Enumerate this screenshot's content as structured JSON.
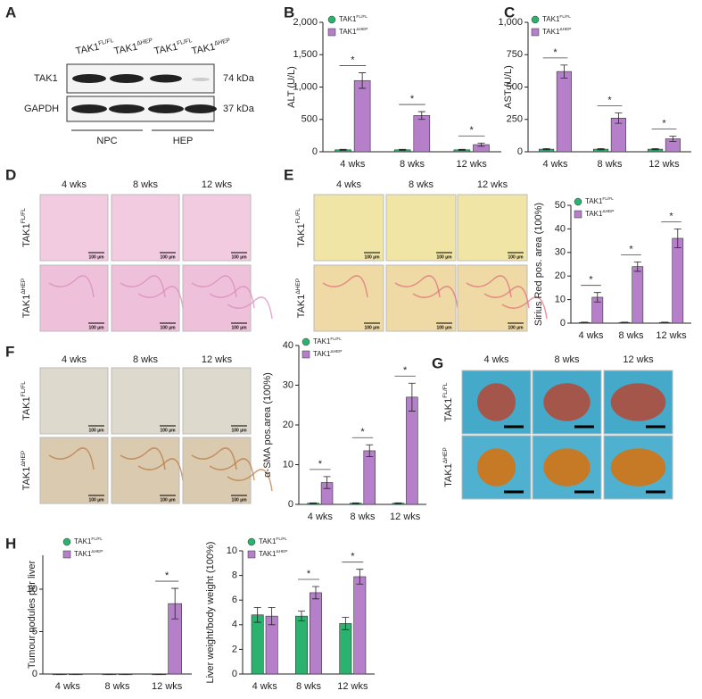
{
  "figure": {
    "panel_labels": [
      "A",
      "B",
      "C",
      "D",
      "E",
      "F",
      "G",
      "H"
    ]
  },
  "blot": {
    "lanes": [
      {
        "name": "TAK1",
        "superscript": "FL/FL"
      },
      {
        "name": "TAK1",
        "superscript": "ΔHEP"
      },
      {
        "name": "TAK1",
        "superscript": "FL/FL"
      },
      {
        "name": "TAK1",
        "superscript": "ΔHEP"
      }
    ],
    "rows": [
      "TAK1",
      "GAPDH"
    ],
    "sizes": [
      "74 kDa",
      "37 kDa"
    ],
    "groups": [
      "NPC",
      "HEP"
    ]
  },
  "histology": {
    "timepoints": [
      "4 wks",
      "8 wks",
      "12 wks"
    ],
    "genotypes": [
      {
        "name": "TAK1",
        "superscript": "FL/FL"
      },
      {
        "name": "TAK1",
        "superscript": "ΔHEP"
      }
    ],
    "scale_bar": "100 µm"
  },
  "chart_data": [
    {
      "type": "bar",
      "y_label": "ALT (U/L)",
      "categories": [
        "4 wks",
        "8 wks",
        "12 wks"
      ],
      "series": [
        {
          "name": "TAK1",
          "superscript": "FL/FL",
          "color": "#2bb26f",
          "values": [
            30,
            30,
            30
          ],
          "errors": [
            8,
            8,
            8
          ]
        },
        {
          "name": "TAK1",
          "superscript": "ΔHEP",
          "color": "#b580c9",
          "values": [
            1100,
            560,
            110
          ],
          "errors": [
            120,
            60,
            25
          ]
        }
      ],
      "ylim": [
        0,
        2000
      ],
      "yticks": [
        0,
        500,
        {
          "value": 1000,
          "label": "1,000"
        },
        {
          "value": 1500,
          "label": "1,500"
        },
        {
          "value": 2000,
          "label": "2,000"
        }
      ],
      "significance": [
        "*",
        "*",
        "*"
      ]
    },
    {
      "type": "bar",
      "y_label": "AST (U/L)",
      "categories": [
        "4 wks",
        "8 wks",
        "12 wks"
      ],
      "series": [
        {
          "name": "TAK1",
          "superscript": "FL/FL",
          "color": "#2bb26f",
          "values": [
            20,
            20,
            20
          ],
          "errors": [
            5,
            5,
            5
          ]
        },
        {
          "name": "TAK1",
          "superscript": "ΔHEP",
          "color": "#b580c9",
          "values": [
            620,
            260,
            100
          ],
          "errors": [
            50,
            40,
            20
          ]
        }
      ],
      "ylim": [
        0,
        1000
      ],
      "yticks": [
        0,
        250,
        500,
        750,
        {
          "value": 1000,
          "label": "1,000"
        }
      ],
      "significance": [
        "*",
        "*",
        "*"
      ]
    },
    {
      "type": "bar",
      "y_label": "Sirius Red pos. area (100%)",
      "categories": [
        "4 wks",
        "8 wks",
        "12 wks"
      ],
      "series": [
        {
          "name": "TAK1",
          "superscript": "FL/FL",
          "color": "#2bb26f",
          "values": [
            0.3,
            0.3,
            0.3
          ],
          "errors": [
            0.1,
            0.1,
            0.1
          ]
        },
        {
          "name": "TAK1",
          "superscript": "ΔHEP",
          "color": "#b580c9",
          "values": [
            11,
            24,
            36
          ],
          "errors": [
            2,
            2,
            4
          ]
        }
      ],
      "ylim": [
        0,
        50
      ],
      "yticks": [
        0,
        10,
        20,
        30,
        40,
        50
      ],
      "significance": [
        "*",
        "*",
        "*"
      ]
    },
    {
      "type": "bar",
      "y_label": "α-SMA pos.area (100%)",
      "categories": [
        "4 wks",
        "8 wks",
        "12 wks"
      ],
      "series": [
        {
          "name": "TAK1",
          "superscript": "FL/FL",
          "color": "#2bb26f",
          "values": [
            0.3,
            0.3,
            0.3
          ],
          "errors": [
            0.1,
            0.1,
            0.1
          ]
        },
        {
          "name": "TAK1",
          "superscript": "ΔHEP",
          "color": "#b580c9",
          "values": [
            5.5,
            13.5,
            27
          ],
          "errors": [
            1.5,
            1.5,
            3.5
          ]
        }
      ],
      "ylim": [
        0,
        40
      ],
      "yticks": [
        0,
        10,
        20,
        30,
        40
      ],
      "significance": [
        "*",
        "*",
        "*"
      ]
    },
    {
      "type": "bar",
      "y_label": "Tumour nodules per liver",
      "categories": [
        "4 wks",
        "8 wks",
        "12 wks"
      ],
      "series": [
        {
          "name": "TAK1",
          "superscript": "FL/FL",
          "color": "#2bb26f",
          "values": [
            0,
            0,
            0
          ],
          "errors": [
            0,
            0,
            0
          ]
        },
        {
          "name": "TAK1",
          "superscript": "ΔHEP",
          "color": "#b580c9",
          "values": [
            0,
            0,
            8.3
          ],
          "errors": [
            0,
            0,
            1.8
          ]
        }
      ],
      "ylim": [
        0,
        14
      ],
      "yticks": [
        0,
        5,
        10
      ],
      "significance": [
        null,
        null,
        "*"
      ]
    },
    {
      "type": "bar",
      "y_label": "Liver weight/body weight (100%)",
      "categories": [
        "4 wks",
        "8 wks",
        "12 wks"
      ],
      "series": [
        {
          "name": "TAK1",
          "superscript": "FL/FL",
          "color": "#2bb26f",
          "values": [
            4.8,
            4.7,
            4.1
          ],
          "errors": [
            0.6,
            0.4,
            0.5
          ]
        },
        {
          "name": "TAK1",
          "superscript": "ΔHEP",
          "color": "#b580c9",
          "values": [
            4.7,
            6.6,
            7.9
          ],
          "errors": [
            0.7,
            0.5,
            0.6
          ]
        }
      ],
      "ylim": [
        0,
        10
      ],
      "yticks": [
        0,
        2,
        4,
        6,
        8,
        10
      ],
      "significance": [
        null,
        "*",
        "*"
      ]
    }
  ]
}
